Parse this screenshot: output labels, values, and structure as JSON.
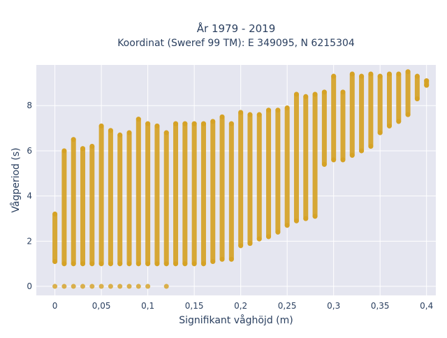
{
  "chart_data": {
    "type": "scatter",
    "title": "År 1979 - 2019",
    "subtitle": "Koordinat (Sweref 99 TM): E 349095, N 6215304",
    "xlabel": "Signifikant våghöjd (m)",
    "ylabel": "Vågperiod (s)",
    "xlim": [
      -0.02,
      0.41
    ],
    "ylim": [
      -0.4,
      9.8
    ],
    "x_ticks": [
      0,
      0.05,
      0.1,
      0.15,
      0.2,
      0.25,
      0.3,
      0.35,
      0.4
    ],
    "x_tick_labels": [
      "0",
      "0,05",
      "0,1",
      "0,15",
      "0,2",
      "0,25",
      "0,3",
      "0,35",
      "0,4"
    ],
    "y_ticks": [
      0,
      2,
      4,
      6,
      8
    ],
    "y_tick_labels": [
      "0",
      "2",
      "4",
      "6",
      "8"
    ],
    "grid": true,
    "legend": false,
    "colors": {
      "marker": "#d4a020",
      "plot_bg": "#e5e6f0",
      "grid": "#ffffff"
    },
    "series": [
      {
        "columns": [
          {
            "x": 0.0,
            "y_min": 1.1,
            "y_max": 3.2,
            "zero": true
          },
          {
            "x": 0.01,
            "y_min": 1.0,
            "y_max": 6.0,
            "zero": true
          },
          {
            "x": 0.02,
            "y_min": 1.0,
            "y_max": 6.5,
            "zero": true
          },
          {
            "x": 0.03,
            "y_min": 1.0,
            "y_max": 6.1,
            "zero": true
          },
          {
            "x": 0.04,
            "y_min": 1.0,
            "y_max": 6.2,
            "zero": true
          },
          {
            "x": 0.05,
            "y_min": 1.0,
            "y_max": 7.1,
            "zero": true
          },
          {
            "x": 0.06,
            "y_min": 1.0,
            "y_max": 6.9,
            "zero": true
          },
          {
            "x": 0.07,
            "y_min": 1.0,
            "y_max": 6.7,
            "zero": true
          },
          {
            "x": 0.08,
            "y_min": 1.0,
            "y_max": 6.8,
            "zero": true
          },
          {
            "x": 0.09,
            "y_min": 1.0,
            "y_max": 7.4,
            "zero": true
          },
          {
            "x": 0.1,
            "y_min": 1.0,
            "y_max": 7.2,
            "zero": true
          },
          {
            "x": 0.11,
            "y_min": 1.0,
            "y_max": 7.1,
            "zero": false
          },
          {
            "x": 0.12,
            "y_min": 1.0,
            "y_max": 6.8,
            "zero": true
          },
          {
            "x": 0.13,
            "y_min": 1.0,
            "y_max": 7.2,
            "zero": false
          },
          {
            "x": 0.14,
            "y_min": 1.0,
            "y_max": 7.2,
            "zero": false
          },
          {
            "x": 0.15,
            "y_min": 1.0,
            "y_max": 7.2,
            "zero": false
          },
          {
            "x": 0.16,
            "y_min": 1.0,
            "y_max": 7.2,
            "zero": false
          },
          {
            "x": 0.17,
            "y_min": 1.1,
            "y_max": 7.3,
            "zero": false
          },
          {
            "x": 0.18,
            "y_min": 1.2,
            "y_max": 7.5,
            "zero": false
          },
          {
            "x": 0.19,
            "y_min": 1.2,
            "y_max": 7.2,
            "zero": false
          },
          {
            "x": 0.2,
            "y_min": 1.8,
            "y_max": 7.7,
            "zero": false
          },
          {
            "x": 0.21,
            "y_min": 1.9,
            "y_max": 7.6,
            "zero": false
          },
          {
            "x": 0.22,
            "y_min": 2.1,
            "y_max": 7.6,
            "zero": false
          },
          {
            "x": 0.23,
            "y_min": 2.2,
            "y_max": 7.8,
            "zero": false
          },
          {
            "x": 0.24,
            "y_min": 2.4,
            "y_max": 7.8,
            "zero": false
          },
          {
            "x": 0.25,
            "y_min": 2.7,
            "y_max": 7.9,
            "zero": false
          },
          {
            "x": 0.26,
            "y_min": 2.9,
            "y_max": 8.5,
            "zero": false
          },
          {
            "x": 0.27,
            "y_min": 3.0,
            "y_max": 8.4,
            "zero": false
          },
          {
            "x": 0.28,
            "y_min": 3.1,
            "y_max": 8.5,
            "zero": false
          },
          {
            "x": 0.29,
            "y_min": 5.4,
            "y_max": 8.6,
            "zero": false
          },
          {
            "x": 0.3,
            "y_min": 5.6,
            "y_max": 9.3,
            "zero": false
          },
          {
            "x": 0.31,
            "y_min": 5.6,
            "y_max": 8.6,
            "zero": false
          },
          {
            "x": 0.32,
            "y_min": 5.8,
            "y_max": 9.4,
            "zero": false
          },
          {
            "x": 0.33,
            "y_min": 6.0,
            "y_max": 9.3,
            "zero": false
          },
          {
            "x": 0.34,
            "y_min": 6.2,
            "y_max": 9.4,
            "zero": false
          },
          {
            "x": 0.35,
            "y_min": 6.8,
            "y_max": 9.3,
            "zero": false
          },
          {
            "x": 0.36,
            "y_min": 7.1,
            "y_max": 9.4,
            "zero": false
          },
          {
            "x": 0.37,
            "y_min": 7.3,
            "y_max": 9.4,
            "zero": false
          },
          {
            "x": 0.38,
            "y_min": 7.6,
            "y_max": 9.5,
            "zero": false
          },
          {
            "x": 0.39,
            "y_min": 8.3,
            "y_max": 9.3,
            "zero": false
          },
          {
            "x": 0.4,
            "y_min": 8.9,
            "y_max": 9.1,
            "zero": false
          }
        ]
      }
    ]
  }
}
